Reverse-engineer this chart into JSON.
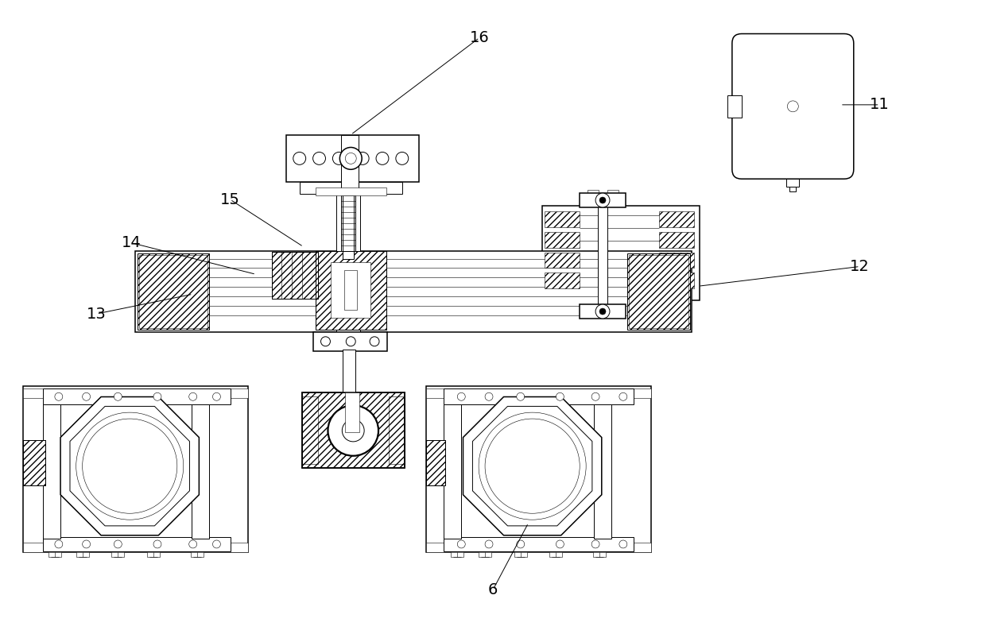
{
  "bg_color": "#ffffff",
  "fig_width": 12.39,
  "fig_height": 7.93,
  "dpi": 100
}
